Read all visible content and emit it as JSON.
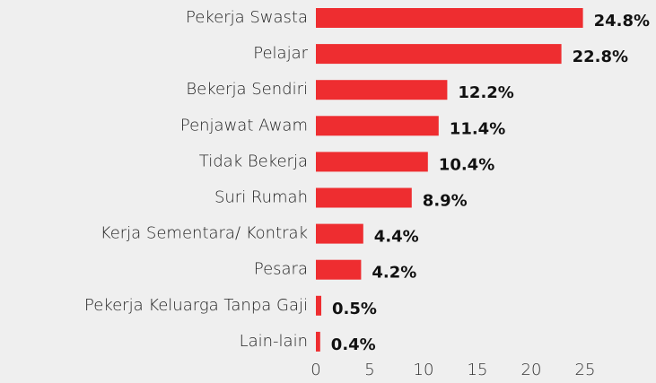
{
  "chart_data": {
    "type": "bar",
    "orientation": "horizontal",
    "categories": [
      "Pekerja Swasta",
      "Pelajar",
      "Bekerja Sendiri",
      "Penjawat Awam",
      "Tidak Bekerja",
      "Suri Rumah",
      "Kerja Sementara/ Kontrak",
      "Pesara",
      "Pekerja Keluarga Tanpa Gaji",
      "Lain-lain"
    ],
    "values": [
      24.8,
      22.8,
      12.2,
      11.4,
      10.4,
      8.9,
      4.4,
      4.2,
      0.5,
      0.4
    ],
    "value_labels": [
      "24.8%",
      "22.8%",
      "12.2%",
      "11.4%",
      "10.4%",
      "8.9%",
      "4.4%",
      "4.2%",
      "0.5%",
      "0.4%"
    ],
    "color": "#ee2d30",
    "xlim": [
      0,
      25
    ],
    "xticks": [
      0,
      5,
      10,
      15,
      20,
      25
    ],
    "grid": false
  }
}
